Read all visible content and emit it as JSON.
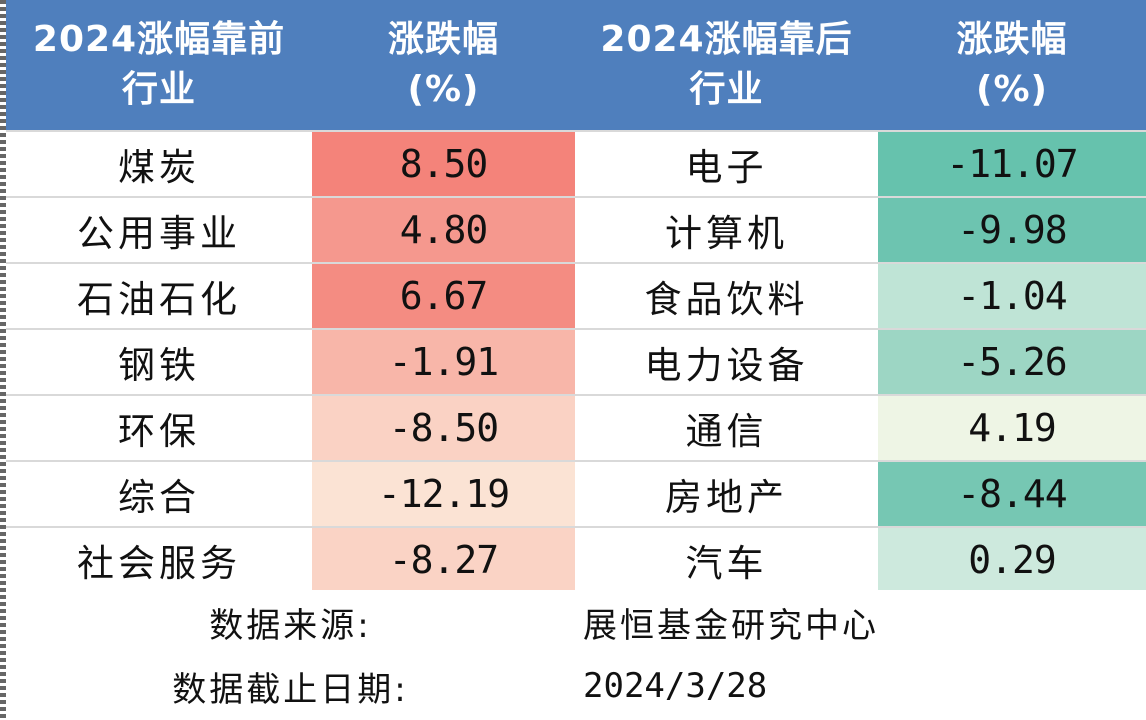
{
  "header": {
    "col1_line1": "2024涨幅靠前",
    "col1_line2": "行业",
    "col2_line1": "涨跌幅",
    "col2_line2": "(%)",
    "col3_line1": "2024涨幅靠后",
    "col3_line2": "行业",
    "col4_line1": "涨跌幅",
    "col4_line2": "(%)"
  },
  "rows": [
    {
      "top_industry": "煤炭",
      "top_change": "8.50",
      "top_color": "#f4837a",
      "bottom_industry": "电子",
      "bottom_change": "-11.07",
      "bottom_color": "#66c2ad"
    },
    {
      "top_industry": "公用事业",
      "top_change": "4.80",
      "top_color": "#f5988e",
      "bottom_industry": "计算机",
      "bottom_change": "-9.98",
      "bottom_color": "#6dc4b0"
    },
    {
      "top_industry": "石油石化",
      "top_change": "6.67",
      "top_color": "#f48c82",
      "bottom_industry": "食品饮料",
      "bottom_change": "-1.04",
      "bottom_color": "#bfe4d6"
    },
    {
      "top_industry": "钢铁",
      "top_change": "-1.91",
      "top_color": "#f8b6a9",
      "bottom_industry": "电力设备",
      "bottom_change": "-5.26",
      "bottom_color": "#9dd6c4"
    },
    {
      "top_industry": "环保",
      "top_change": "-8.50",
      "top_color": "#fad2c4",
      "bottom_industry": "通信",
      "bottom_change": "4.19",
      "bottom_color": "#eef5e5"
    },
    {
      "top_industry": "综合",
      "top_change": "-12.19",
      "top_color": "#fbe3d4",
      "bottom_industry": "房地产",
      "bottom_change": "-8.44",
      "bottom_color": "#76c7b3"
    },
    {
      "top_industry": "社会服务",
      "top_change": "-8.27",
      "top_color": "#fad3c5",
      "bottom_industry": "汽车",
      "bottom_change": "0.29",
      "bottom_color": "#cde9dd"
    }
  ],
  "footer": {
    "source_label": "数据来源:",
    "source_value": "展恒基金研究中心",
    "date_label": "数据截止日期:",
    "date_value": "2024/3/28"
  },
  "colors": {
    "header_bg": "#4f7fbd",
    "header_text": "#ffffff",
    "grid_line": "#d9d9d9"
  }
}
